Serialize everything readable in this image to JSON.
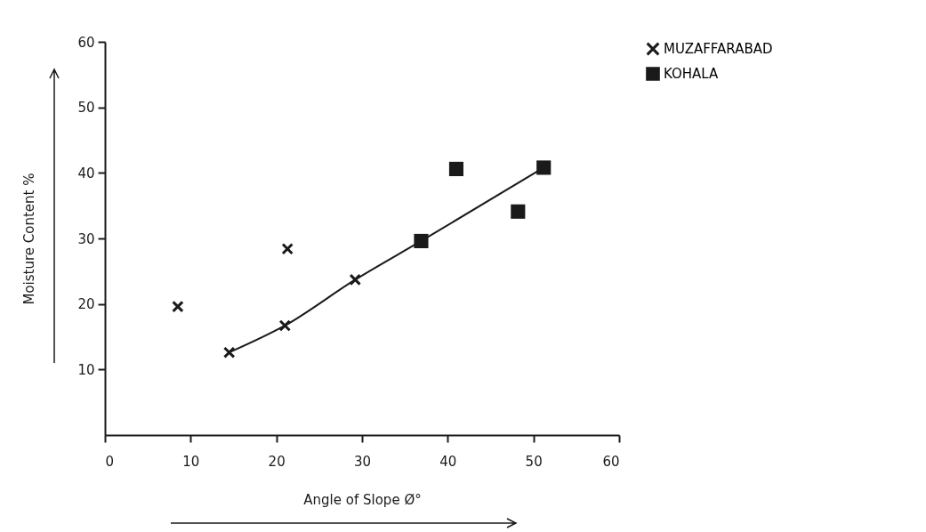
{
  "chart_data": {
    "type": "scatter",
    "xlabel": "Angle of Slope Ø°",
    "ylabel": "Moisture Content %",
    "xlim": [
      0,
      60
    ],
    "ylim": [
      0,
      60
    ],
    "xticks": [
      0,
      10,
      20,
      30,
      40,
      50,
      60
    ],
    "yticks": [
      10,
      20,
      30,
      40,
      50,
      60
    ],
    "legend": "right",
    "series": [
      {
        "name": "MUZAFFARABAD",
        "color": "#1a1a1a",
        "marker": "cross",
        "x": [
          8.5,
          21.3,
          14.5,
          21.0,
          29.2
        ],
        "values": [
          19.6,
          28.4,
          12.6,
          16.7,
          23.7
        ]
      },
      {
        "name": "KOHALA",
        "color": "#1a1a1a",
        "marker": "square",
        "x": [
          36.9,
          41.0,
          48.2,
          51.2
        ],
        "values": [
          29.6,
          40.6,
          34.1,
          40.8
        ]
      },
      {
        "type": "line",
        "color": "#1a1a1a",
        "x": [
          14.5,
          21.0,
          29.2,
          36.9,
          51.2
        ],
        "values": [
          12.6,
          16.7,
          23.7,
          29.6,
          40.8
        ]
      }
    ]
  }
}
